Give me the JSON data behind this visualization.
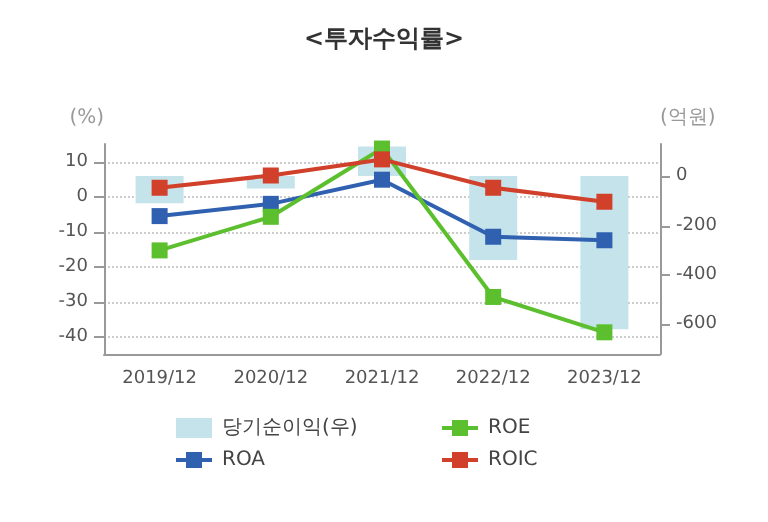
{
  "chart_data": {
    "type": "line",
    "title": "<투자수익률>",
    "ylabel": "(%)",
    "y2label": "(억원)",
    "categories": [
      "2019/12",
      "2020/12",
      "2021/12",
      "2022/12",
      "2023/12"
    ],
    "series": [
      {
        "name": "당기순이익(우)",
        "type": "bar",
        "axis": "y2",
        "color": "#c5e3ea",
        "values": [
          -110,
          -50,
          120,
          -340,
          -620
        ]
      },
      {
        "name": "ROA",
        "color": "#3060b0",
        "values": [
          -5.6,
          -2.1,
          4.8,
          -11.5,
          -12.5
        ]
      },
      {
        "name": "ROE",
        "color": "#5cbf2e",
        "values": [
          -15.4,
          -5.8,
          13.7,
          -28.7,
          -38.8
        ]
      },
      {
        "name": "ROIC",
        "color": "#d0402a",
        "values": [
          2.5,
          6,
          10.6,
          2.5,
          -1.5
        ]
      }
    ],
    "ylim": [
      -45,
      15
    ],
    "yticks": [
      10,
      0,
      -10,
      -20,
      -30,
      -40
    ],
    "y2lim": [
      -720,
      130
    ],
    "y2ticks": [
      0,
      -200,
      -400,
      -600
    ],
    "grid": "y",
    "legend": "bottom",
    "marker": "square",
    "line_style": "solid"
  }
}
